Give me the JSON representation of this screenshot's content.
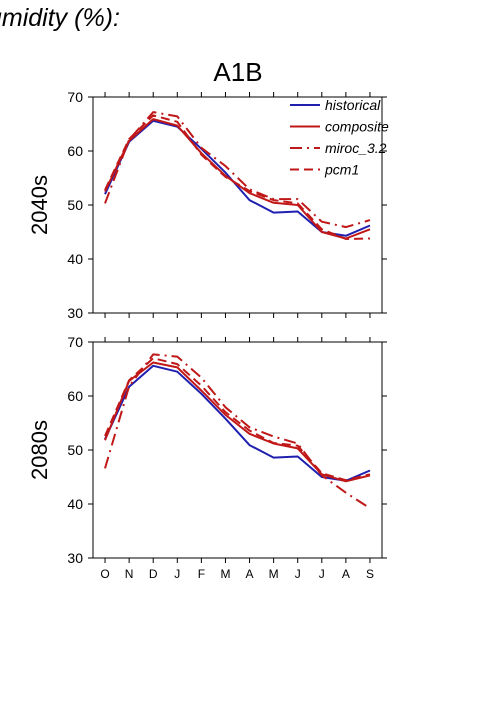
{
  "page": {
    "title_fragment": "umidity (%):"
  },
  "chart_data": {
    "type": "line",
    "title": "A1B",
    "categories": [
      "O",
      "N",
      "D",
      "J",
      "F",
      "M",
      "A",
      "M",
      "J",
      "J",
      "A",
      "S"
    ],
    "ylim": [
      30,
      70
    ],
    "yticks": [
      30,
      40,
      50,
      60,
      70
    ],
    "legend_position": "top-right",
    "grid": false,
    "series_styles": [
      {
        "name": "historical",
        "color": "#2020b0",
        "dash": "none"
      },
      {
        "name": "composite",
        "color": "#c01818",
        "dash": "none"
      },
      {
        "name": "miroc_3.2",
        "color": "#c01818",
        "dash": "dashdot"
      },
      {
        "name": "pcm1",
        "color": "#c01818",
        "dash": "dash"
      }
    ],
    "panels": [
      {
        "ylabel": "2040s",
        "series": [
          {
            "name": "historical",
            "values": [
              52,
              61.7,
              65.6,
              64.5,
              60.4,
              56,
              50.9,
              48.6,
              48.8,
              45,
              44.3,
              46.2
            ]
          },
          {
            "name": "composite",
            "values": [
              52.5,
              61.9,
              65.9,
              64.7,
              59.6,
              55.4,
              52.2,
              50.4,
              50,
              45,
              43.8,
              45.5
            ]
          },
          {
            "name": "miroc_3.2",
            "values": [
              50.3,
              62.1,
              67.2,
              66.4,
              60.6,
              57.2,
              52.9,
              51.1,
              51.1,
              46.9,
              45.9,
              47.2
            ]
          },
          {
            "name": "pcm1",
            "values": [
              52.8,
              62.2,
              66.6,
              65.4,
              59.3,
              55.2,
              52.6,
              50.9,
              50.3,
              45.5,
              43.7,
              43.8
            ]
          }
        ]
      },
      {
        "ylabel": "2080s",
        "series": [
          {
            "name": "historical",
            "values": [
              52,
              61.7,
              65.6,
              64.5,
              60.4,
              55.8,
              50.9,
              48.6,
              48.8,
              45,
              44.3,
              46.2
            ]
          },
          {
            "name": "composite",
            "values": [
              51.8,
              62.8,
              66.2,
              65.3,
              61,
              56.5,
              53,
              51.2,
              50.3,
              45.5,
              44.2,
              45.3
            ]
          },
          {
            "name": "miroc_3.2",
            "values": [
              46.6,
              61.8,
              67.7,
              67.3,
              63.4,
              57.9,
              54.2,
              52.5,
              51.2,
              45.3,
              42.1,
              39.2
            ]
          },
          {
            "name": "pcm1",
            "values": [
              52.6,
              62.9,
              67,
              65.9,
              61.9,
              57,
              53.6,
              51.3,
              50.8,
              45.7,
              44.4,
              45.5
            ]
          }
        ]
      }
    ]
  }
}
